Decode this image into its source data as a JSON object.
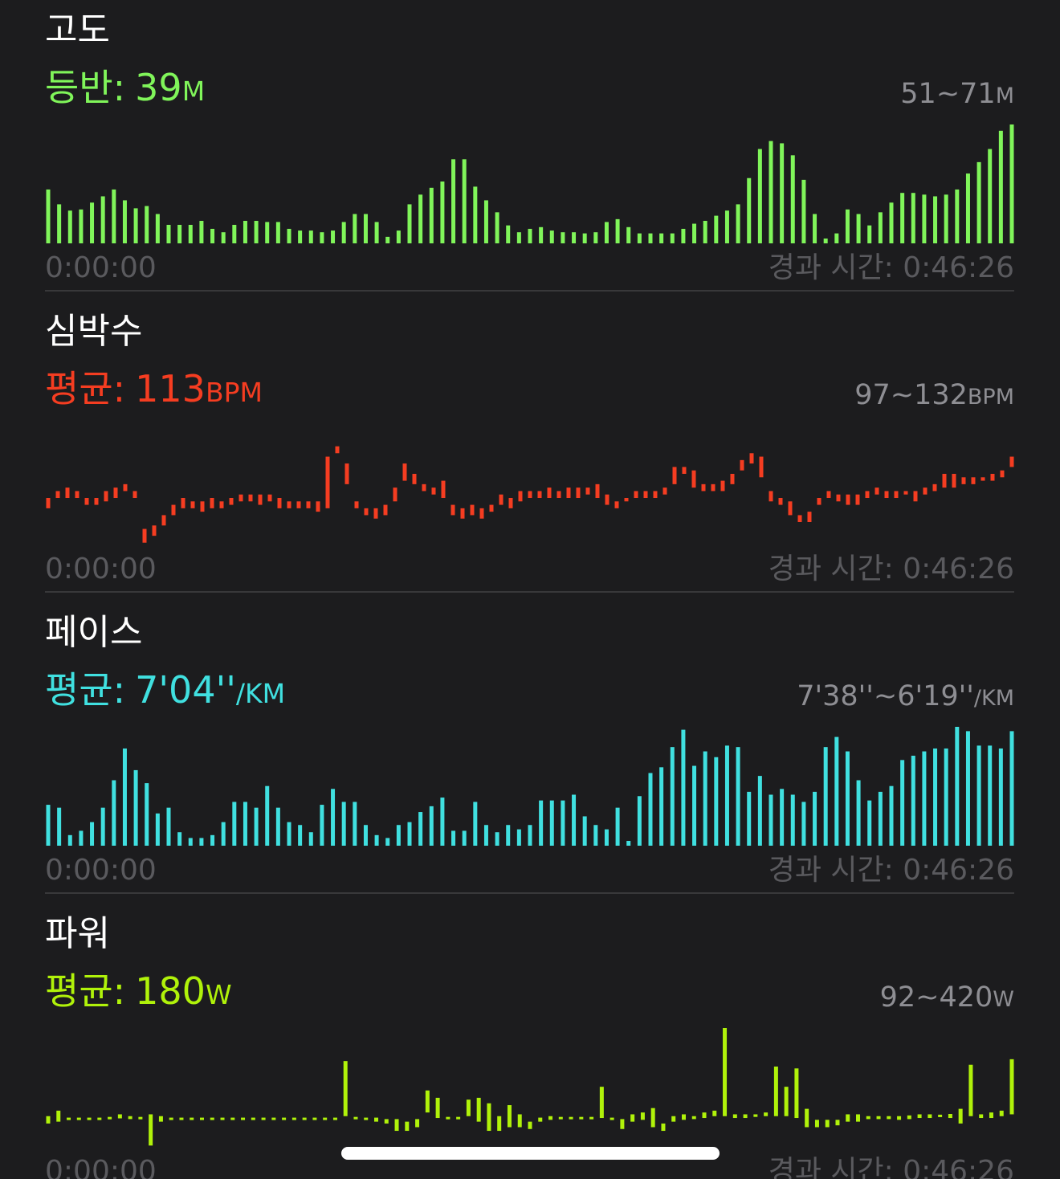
{
  "sections": [
    {
      "title": "고도",
      "summary": {
        "label": "등반:",
        "value": 39,
        "unit": "M"
      },
      "range": {
        "min": 51,
        "sep": "~",
        "max": 71,
        "unit": "M"
      },
      "chart": {
        "type": "bar",
        "color": "#80f55a",
        "values": [
          59.6,
          57,
          55.9,
          56.1,
          57.3,
          58.4,
          59.6,
          57.7,
          56.3,
          56.7,
          55.3,
          53.4,
          53.4,
          53.4,
          54.1,
          52.7,
          52.1,
          53.4,
          54.1,
          54.1,
          53.9,
          53.9,
          52.7,
          52.4,
          52.4,
          52.1,
          52.4,
          53.9,
          55.3,
          55.3,
          53.9,
          51.3,
          52.4,
          57,
          58.7,
          59.9,
          61,
          64.9,
          64.9,
          60.1,
          57.7,
          55.6,
          53.3,
          52.1,
          52.7,
          53,
          52.4,
          52.1,
          52.1,
          51.9,
          52.1,
          53.9,
          54.4,
          53,
          51.9,
          51.9,
          51.9,
          51.9,
          52.7,
          53.6,
          54.1,
          55,
          55.9,
          57,
          61.6,
          66.7,
          68.1,
          67.7,
          65.6,
          61.3,
          55.3,
          51,
          51.9,
          56.1,
          55.3,
          53.3,
          55.6,
          57.3,
          59,
          59,
          58.7,
          58.4,
          58.7,
          59.6,
          62.4,
          64.4,
          66.7,
          69.9,
          71
        ]
      },
      "start": "0:00:00",
      "elapsed": "경과 시간: 0:46:26"
    },
    {
      "title": "심박수",
      "summary": {
        "label": "평균:",
        "value": 113,
        "unit": "BPM"
      },
      "range": {
        "min": 97,
        "sep": "~",
        "max": 132,
        "unit": "BPM"
      },
      "chart": {
        "type": "range-bar",
        "color": "#f53d21",
        "values": [
          [
            108,
            111
          ],
          [
            111,
            113
          ],
          [
            111,
            114
          ],
          [
            111,
            113
          ],
          [
            109,
            111
          ],
          [
            109,
            111
          ],
          [
            110,
            113
          ],
          [
            111,
            114
          ],
          [
            113,
            115
          ],
          [
            111,
            113
          ],
          [
            98,
            102
          ],
          [
            100,
            103
          ],
          [
            103,
            106
          ],
          [
            106,
            109
          ],
          [
            108,
            111
          ],
          [
            108,
            110
          ],
          [
            107,
            110
          ],
          [
            108,
            111
          ],
          [
            108,
            110
          ],
          [
            109,
            111
          ],
          [
            110,
            112
          ],
          [
            110,
            112
          ],
          [
            109,
            112
          ],
          [
            110,
            112
          ],
          [
            108,
            111
          ],
          [
            108,
            110
          ],
          [
            108,
            110
          ],
          [
            108,
            110
          ],
          [
            107,
            110
          ],
          [
            108,
            123
          ],
          [
            124,
            126
          ],
          [
            115,
            121
          ],
          [
            108,
            110
          ],
          [
            106,
            108
          ],
          [
            105,
            108
          ],
          [
            106,
            109
          ],
          [
            110,
            114
          ],
          [
            116,
            121
          ],
          [
            115,
            118
          ],
          [
            113,
            115
          ],
          [
            112,
            114
          ],
          [
            111,
            116
          ],
          [
            106,
            109
          ],
          [
            105,
            108
          ],
          [
            106,
            109
          ],
          [
            105,
            108
          ],
          [
            107,
            109
          ],
          [
            109,
            112
          ],
          [
            108,
            111
          ],
          [
            110,
            113
          ],
          [
            111,
            113
          ],
          [
            111,
            113
          ],
          [
            111,
            114
          ],
          [
            111,
            113
          ],
          [
            111,
            114
          ],
          [
            111,
            114
          ],
          [
            112,
            114
          ],
          [
            111,
            115
          ],
          [
            109,
            112
          ],
          [
            108,
            110
          ],
          [
            110,
            111
          ],
          [
            111,
            113
          ],
          [
            111,
            113
          ],
          [
            111,
            113
          ],
          [
            112,
            114
          ],
          [
            115,
            120
          ],
          [
            118,
            120
          ],
          [
            114,
            119
          ],
          [
            113,
            115
          ],
          [
            113,
            115
          ],
          [
            113,
            116
          ],
          [
            115,
            118
          ],
          [
            119,
            122
          ],
          [
            121,
            124
          ],
          [
            117,
            123
          ],
          [
            110,
            113
          ],
          [
            109,
            111
          ],
          [
            106,
            110
          ],
          [
            104,
            106
          ],
          [
            104,
            107
          ],
          [
            109,
            111
          ],
          [
            111,
            113
          ],
          [
            110,
            112
          ],
          [
            109,
            112
          ],
          [
            109,
            112
          ],
          [
            111,
            113
          ],
          [
            112,
            114
          ],
          [
            111,
            113
          ],
          [
            111,
            113
          ],
          [
            112,
            113
          ],
          [
            110,
            113
          ],
          [
            112,
            114
          ],
          [
            113,
            115
          ],
          [
            114,
            118
          ],
          [
            114,
            118
          ],
          [
            115,
            117
          ],
          [
            115,
            117
          ],
          [
            116,
            117
          ],
          [
            116,
            118
          ],
          [
            117,
            119
          ],
          [
            120,
            123
          ]
        ]
      },
      "start": "0:00:00",
      "elapsed": "경과 시간: 0:46:26"
    },
    {
      "title": "페이스",
      "summary": {
        "label": "평균:",
        "value": "7'04''",
        "unit": "/KM"
      },
      "range": {
        "min": {
          "value": 458,
          "label": "7'38''"
        },
        "sep": "~",
        "max": {
          "value": 379,
          "label": "6'19''"
        },
        "unit": "/KM"
      },
      "chart": {
        "type": "bar",
        "color": "#40e0e0",
        "values": [
          433,
          435,
          454,
          451,
          445,
          435,
          416,
          394,
          409,
          418,
          439,
          435,
          452,
          456,
          456,
          454,
          445,
          431,
          431,
          435,
          420,
          435,
          445,
          447,
          452,
          433,
          422,
          431,
          431,
          447,
          454,
          456,
          447,
          445,
          438,
          434,
          428,
          451,
          451,
          431,
          447,
          452,
          447,
          450,
          447,
          430,
          430,
          430,
          426,
          441,
          447,
          450,
          435,
          458,
          427,
          411,
          407,
          393,
          381,
          406,
          396,
          400,
          392,
          393,
          424,
          413,
          426,
          422,
          426,
          431,
          424,
          393,
          386,
          396,
          416,
          430,
          424,
          420,
          402,
          399,
          396,
          394,
          394,
          379,
          382,
          392,
          392,
          394,
          382
        ]
      },
      "start": "0:00:00",
      "elapsed": "경과 시간: 0:46:26"
    },
    {
      "title": "파워",
      "summary": {
        "label": "평균:",
        "value": 180,
        "unit": "W"
      },
      "range": {
        "min": 92,
        "sep": "~",
        "max": 420,
        "unit": "W"
      },
      "chart": {
        "type": "range-bar",
        "color": "#b0f20a",
        "values": [
          [
            160,
            180
          ],
          [
            165,
            195
          ],
          [
            170,
            176
          ],
          [
            170,
            176
          ],
          [
            170,
            176
          ],
          [
            170,
            176
          ],
          [
            172,
            178
          ],
          [
            174,
            185
          ],
          [
            172,
            180
          ],
          [
            174,
            178
          ],
          [
            100,
            185
          ],
          [
            165,
            180
          ],
          [
            170,
            176
          ],
          [
            170,
            176
          ],
          [
            170,
            176
          ],
          [
            170,
            176
          ],
          [
            170,
            176
          ],
          [
            170,
            176
          ],
          [
            170,
            176
          ],
          [
            170,
            176
          ],
          [
            170,
            176
          ],
          [
            170,
            176
          ],
          [
            170,
            176
          ],
          [
            170,
            176
          ],
          [
            170,
            176
          ],
          [
            170,
            176
          ],
          [
            170,
            176
          ],
          [
            170,
            176
          ],
          [
            170,
            176
          ],
          [
            180,
            330
          ],
          [
            172,
            178
          ],
          [
            170,
            176
          ],
          [
            165,
            176
          ],
          [
            160,
            172
          ],
          [
            140,
            172
          ],
          [
            140,
            165
          ],
          [
            150,
            172
          ],
          [
            190,
            250
          ],
          [
            175,
            230
          ],
          [
            172,
            178
          ],
          [
            172,
            178
          ],
          [
            180,
            225
          ],
          [
            165,
            230
          ],
          [
            140,
            215
          ],
          [
            140,
            180
          ],
          [
            150,
            210
          ],
          [
            150,
            185
          ],
          [
            145,
            165
          ],
          [
            165,
            176
          ],
          [
            170,
            180
          ],
          [
            172,
            178
          ],
          [
            172,
            178
          ],
          [
            172,
            178
          ],
          [
            172,
            178
          ],
          [
            175,
            260
          ],
          [
            170,
            176
          ],
          [
            145,
            172
          ],
          [
            165,
            185
          ],
          [
            170,
            190
          ],
          [
            150,
            202
          ],
          [
            140,
            160
          ],
          [
            165,
            180
          ],
          [
            170,
            185
          ],
          [
            172,
            180
          ],
          [
            175,
            190
          ],
          [
            180,
            195
          ],
          [
            180,
            420
          ],
          [
            175,
            185
          ],
          [
            175,
            185
          ],
          [
            178,
            185
          ],
          [
            180,
            190
          ],
          [
            180,
            315
          ],
          [
            180,
            260
          ],
          [
            175,
            310
          ],
          [
            150,
            200
          ],
          [
            150,
            170
          ],
          [
            150,
            170
          ],
          [
            155,
            170
          ],
          [
            165,
            185
          ],
          [
            165,
            185
          ],
          [
            172,
            180
          ],
          [
            172,
            180
          ],
          [
            172,
            180
          ],
          [
            170,
            180
          ],
          [
            172,
            182
          ],
          [
            175,
            185
          ],
          [
            175,
            185
          ],
          [
            178,
            184
          ],
          [
            175,
            186
          ],
          [
            160,
            200
          ],
          [
            180,
            320
          ],
          [
            175,
            185
          ],
          [
            175,
            190
          ],
          [
            180,
            195
          ],
          [
            185,
            335
          ]
        ]
      },
      "start": "0:00:00",
      "elapsed": "경과 시간: 0:46:26"
    }
  ]
}
